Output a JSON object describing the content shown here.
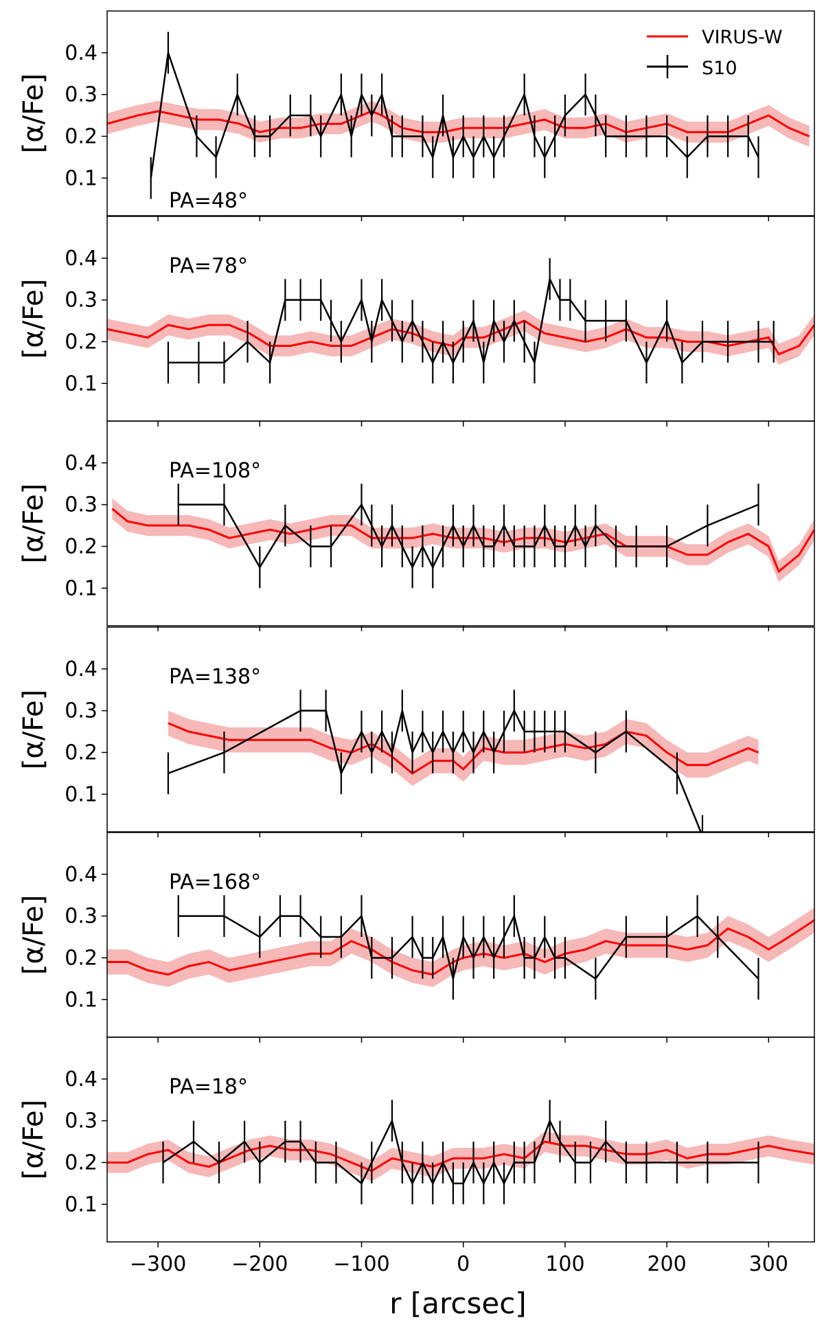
{
  "chart_data": {
    "type": "line",
    "xlabel": "r [arcsec]",
    "ylabel": "[α/Fe]",
    "xlim": [
      -350,
      345
    ],
    "ylim": [
      0.01,
      0.5
    ],
    "xticks": [
      -300,
      -200,
      -100,
      0,
      100,
      200,
      300
    ],
    "xtick_labels": [
      "−300",
      "−200",
      "−100",
      "0",
      "100",
      "200",
      "300"
    ],
    "yticks": [
      0.1,
      0.2,
      0.3,
      0.4
    ],
    "ytick_labels": [
      "0.1",
      "0.2",
      "0.3",
      "0.4"
    ],
    "legend": {
      "location": "top-right",
      "entries": [
        "VIRUS-W",
        "S10"
      ]
    },
    "colors": {
      "virus": "#ff0000",
      "band": "#f4a0a0",
      "s10": "#000000"
    },
    "series_names": [
      "VIRUS-W",
      "S10"
    ],
    "panels": [
      {
        "label": "PA=48°",
        "label_pos": "bottom",
        "virus_w": {
          "x": [
            -350,
            -320,
            -300,
            -280,
            -260,
            -240,
            -220,
            -200,
            -180,
            -160,
            -140,
            -120,
            -100,
            -90,
            -80,
            -60,
            -40,
            -20,
            0,
            20,
            40,
            60,
            80,
            100,
            120,
            140,
            160,
            180,
            200,
            220,
            240,
            260,
            280,
            300,
            320,
            340
          ],
          "y": [
            0.23,
            0.25,
            0.26,
            0.25,
            0.24,
            0.24,
            0.23,
            0.21,
            0.22,
            0.22,
            0.23,
            0.23,
            0.25,
            0.26,
            0.25,
            0.22,
            0.21,
            0.21,
            0.22,
            0.22,
            0.22,
            0.23,
            0.24,
            0.22,
            0.22,
            0.23,
            0.21,
            0.22,
            0.23,
            0.21,
            0.21,
            0.21,
            0.23,
            0.25,
            0.22,
            0.2
          ],
          "err": 0.025
        },
        "s10": {
          "x": [
            -307,
            -290,
            -262,
            -243,
            -222,
            -205,
            -190,
            -170,
            -150,
            -140,
            -120,
            -110,
            -100,
            -90,
            -80,
            -70,
            -60,
            -40,
            -30,
            -20,
            -10,
            0,
            10,
            20,
            30,
            40,
            60,
            70,
            80,
            90,
            100,
            120,
            130,
            140,
            160,
            180,
            200,
            220,
            240,
            260,
            280,
            290
          ],
          "y": [
            0.1,
            0.4,
            0.2,
            0.15,
            0.3,
            0.2,
            0.2,
            0.25,
            0.25,
            0.2,
            0.3,
            0.2,
            0.3,
            0.25,
            0.3,
            0.2,
            0.2,
            0.2,
            0.15,
            0.25,
            0.15,
            0.2,
            0.15,
            0.2,
            0.15,
            0.2,
            0.3,
            0.2,
            0.15,
            0.2,
            0.25,
            0.3,
            0.25,
            0.2,
            0.2,
            0.2,
            0.2,
            0.15,
            0.2,
            0.2,
            0.2,
            0.15
          ],
          "err": 0.05
        }
      },
      {
        "label": "PA=78°",
        "label_pos": "top",
        "virus_w": {
          "x": [
            -350,
            -330,
            -310,
            -290,
            -270,
            -250,
            -230,
            -210,
            -190,
            -170,
            -150,
            -130,
            -110,
            -90,
            -70,
            -50,
            -30,
            -10,
            0,
            20,
            40,
            60,
            80,
            100,
            120,
            140,
            160,
            180,
            200,
            220,
            240,
            260,
            280,
            300,
            310,
            330,
            345
          ],
          "y": [
            0.23,
            0.22,
            0.21,
            0.24,
            0.23,
            0.24,
            0.24,
            0.22,
            0.19,
            0.19,
            0.2,
            0.19,
            0.19,
            0.21,
            0.23,
            0.22,
            0.2,
            0.19,
            0.21,
            0.21,
            0.23,
            0.25,
            0.22,
            0.21,
            0.2,
            0.21,
            0.23,
            0.21,
            0.21,
            0.2,
            0.2,
            0.19,
            0.2,
            0.21,
            0.17,
            0.19,
            0.24
          ],
          "err": 0.025
        },
        "s10": {
          "x": [
            -290,
            -260,
            -235,
            -212,
            -190,
            -175,
            -160,
            -140,
            -130,
            -120,
            -100,
            -90,
            -80,
            -70,
            -60,
            -50,
            -40,
            -30,
            -20,
            -10,
            0,
            10,
            20,
            30,
            40,
            50,
            60,
            70,
            85,
            95,
            105,
            120,
            140,
            160,
            180,
            200,
            215,
            235,
            260,
            290,
            305
          ],
          "y": [
            0.15,
            0.15,
            0.15,
            0.2,
            0.15,
            0.3,
            0.3,
            0.3,
            0.25,
            0.2,
            0.3,
            0.2,
            0.3,
            0.25,
            0.2,
            0.25,
            0.2,
            0.15,
            0.2,
            0.15,
            0.2,
            0.25,
            0.15,
            0.25,
            0.2,
            0.25,
            0.2,
            0.15,
            0.35,
            0.3,
            0.3,
            0.25,
            0.25,
            0.25,
            0.15,
            0.25,
            0.15,
            0.2,
            0.2,
            0.2,
            0.2
          ],
          "err": 0.05
        }
      },
      {
        "label": "PA=108°",
        "label_pos": "top",
        "virus_w": {
          "x": [
            -345,
            -330,
            -310,
            -290,
            -270,
            -250,
            -230,
            -210,
            -190,
            -170,
            -150,
            -130,
            -110,
            -90,
            -70,
            -50,
            -30,
            -10,
            0,
            20,
            40,
            60,
            80,
            100,
            120,
            140,
            160,
            180,
            200,
            220,
            240,
            260,
            280,
            300,
            310,
            330,
            345
          ],
          "y": [
            0.29,
            0.26,
            0.25,
            0.25,
            0.25,
            0.24,
            0.22,
            0.23,
            0.24,
            0.23,
            0.24,
            0.25,
            0.25,
            0.22,
            0.22,
            0.22,
            0.23,
            0.22,
            0.22,
            0.22,
            0.21,
            0.22,
            0.22,
            0.21,
            0.22,
            0.23,
            0.2,
            0.2,
            0.2,
            0.18,
            0.18,
            0.21,
            0.23,
            0.2,
            0.14,
            0.18,
            0.24
          ],
          "err": 0.025
        },
        "s10": {
          "x": [
            -280,
            -235,
            -200,
            -175,
            -150,
            -130,
            -100,
            -90,
            -80,
            -70,
            -60,
            -50,
            -40,
            -30,
            -20,
            -10,
            0,
            10,
            20,
            30,
            40,
            50,
            60,
            70,
            80,
            90,
            100,
            110,
            120,
            130,
            150,
            170,
            200,
            240,
            290
          ],
          "y": [
            0.3,
            0.3,
            0.15,
            0.25,
            0.2,
            0.2,
            0.3,
            0.25,
            0.2,
            0.25,
            0.2,
            0.15,
            0.2,
            0.15,
            0.2,
            0.25,
            0.2,
            0.25,
            0.2,
            0.2,
            0.25,
            0.2,
            0.2,
            0.2,
            0.25,
            0.2,
            0.2,
            0.25,
            0.2,
            0.25,
            0.2,
            0.2,
            0.2,
            0.25,
            0.3
          ],
          "err": 0.05
        }
      },
      {
        "label": "PA=138°",
        "label_pos": "top",
        "virus_w": {
          "x": [
            -290,
            -270,
            -250,
            -230,
            -210,
            -190,
            -170,
            -150,
            -130,
            -110,
            -90,
            -70,
            -50,
            -30,
            -10,
            0,
            20,
            40,
            60,
            80,
            100,
            120,
            140,
            160,
            180,
            200,
            220,
            240,
            260,
            280,
            290
          ],
          "y": [
            0.27,
            0.25,
            0.24,
            0.23,
            0.23,
            0.23,
            0.23,
            0.23,
            0.21,
            0.2,
            0.22,
            0.19,
            0.15,
            0.18,
            0.18,
            0.16,
            0.21,
            0.2,
            0.2,
            0.21,
            0.22,
            0.21,
            0.22,
            0.25,
            0.24,
            0.2,
            0.17,
            0.17,
            0.19,
            0.21,
            0.2
          ],
          "err": 0.03
        },
        "s10": {
          "x": [
            -290,
            -235,
            -160,
            -135,
            -120,
            -100,
            -90,
            -80,
            -70,
            -60,
            -50,
            -40,
            -30,
            -20,
            -10,
            0,
            10,
            20,
            30,
            40,
            50,
            60,
            70,
            80,
            90,
            100,
            130,
            160,
            210,
            235
          ],
          "y": [
            0.15,
            0.2,
            0.3,
            0.3,
            0.15,
            0.25,
            0.2,
            0.25,
            0.2,
            0.3,
            0.2,
            0.25,
            0.2,
            0.25,
            0.2,
            0.25,
            0.2,
            0.25,
            0.2,
            0.25,
            0.3,
            0.25,
            0.25,
            0.25,
            0.25,
            0.25,
            0.2,
            0.25,
            0.15,
            0.0
          ],
          "err": 0.05
        }
      },
      {
        "label": "PA=168°",
        "label_pos": "top",
        "virus_w": {
          "x": [
            -350,
            -330,
            -310,
            -290,
            -270,
            -250,
            -230,
            -210,
            -190,
            -170,
            -150,
            -130,
            -110,
            -90,
            -70,
            -50,
            -30,
            -10,
            0,
            20,
            40,
            60,
            80,
            100,
            120,
            140,
            160,
            180,
            200,
            220,
            240,
            260,
            280,
            300,
            320,
            345
          ],
          "y": [
            0.19,
            0.19,
            0.17,
            0.16,
            0.18,
            0.19,
            0.17,
            0.18,
            0.19,
            0.2,
            0.21,
            0.21,
            0.24,
            0.22,
            0.19,
            0.17,
            0.16,
            0.19,
            0.2,
            0.21,
            0.2,
            0.21,
            0.19,
            0.21,
            0.22,
            0.24,
            0.23,
            0.23,
            0.23,
            0.22,
            0.23,
            0.27,
            0.25,
            0.22,
            0.25,
            0.29
          ],
          "err": 0.03
        },
        "s10": {
          "x": [
            -280,
            -235,
            -200,
            -180,
            -160,
            -140,
            -120,
            -100,
            -90,
            -70,
            -50,
            -40,
            -30,
            -20,
            -10,
            0,
            10,
            20,
            30,
            40,
            50,
            60,
            70,
            80,
            90,
            100,
            130,
            160,
            200,
            230,
            250,
            290
          ],
          "y": [
            0.3,
            0.3,
            0.25,
            0.3,
            0.3,
            0.25,
            0.25,
            0.3,
            0.2,
            0.2,
            0.25,
            0.2,
            0.2,
            0.25,
            0.15,
            0.25,
            0.2,
            0.25,
            0.2,
            0.25,
            0.3,
            0.2,
            0.2,
            0.25,
            0.2,
            0.2,
            0.15,
            0.25,
            0.25,
            0.3,
            0.25,
            0.15
          ],
          "err": 0.05
        }
      },
      {
        "label": "PA=18°",
        "label_pos": "top",
        "virus_w": {
          "x": [
            -350,
            -330,
            -310,
            -290,
            -270,
            -250,
            -230,
            -210,
            -190,
            -170,
            -150,
            -130,
            -110,
            -90,
            -70,
            -50,
            -30,
            -10,
            0,
            20,
            40,
            60,
            80,
            100,
            120,
            140,
            160,
            180,
            200,
            220,
            240,
            260,
            280,
            300,
            320,
            345
          ],
          "y": [
            0.2,
            0.2,
            0.22,
            0.23,
            0.2,
            0.19,
            0.21,
            0.23,
            0.24,
            0.23,
            0.23,
            0.22,
            0.2,
            0.18,
            0.21,
            0.2,
            0.19,
            0.21,
            0.21,
            0.21,
            0.22,
            0.21,
            0.25,
            0.24,
            0.24,
            0.23,
            0.22,
            0.22,
            0.23,
            0.21,
            0.22,
            0.22,
            0.23,
            0.24,
            0.23,
            0.22
          ],
          "err": 0.025
        },
        "s10": {
          "x": [
            -295,
            -265,
            -240,
            -215,
            -200,
            -175,
            -160,
            -145,
            -125,
            -100,
            -90,
            -70,
            -60,
            -50,
            -40,
            -30,
            -20,
            -10,
            0,
            10,
            20,
            30,
            40,
            50,
            60,
            70,
            85,
            95,
            110,
            125,
            140,
            160,
            180,
            210,
            240,
            290
          ],
          "y": [
            0.2,
            0.25,
            0.2,
            0.25,
            0.2,
            0.25,
            0.25,
            0.2,
            0.2,
            0.15,
            0.2,
            0.3,
            0.2,
            0.15,
            0.2,
            0.15,
            0.2,
            0.15,
            0.15,
            0.2,
            0.15,
            0.2,
            0.15,
            0.2,
            0.2,
            0.2,
            0.3,
            0.25,
            0.2,
            0.2,
            0.25,
            0.2,
            0.2,
            0.2,
            0.2,
            0.2
          ],
          "err": 0.05
        }
      }
    ]
  }
}
